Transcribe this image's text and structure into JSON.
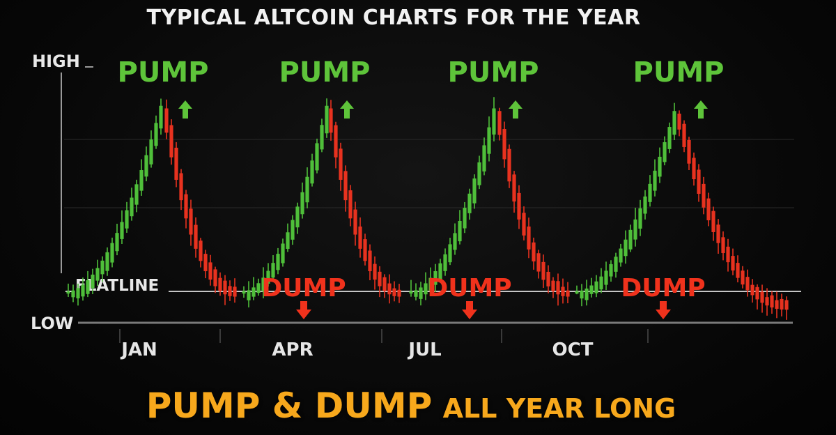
{
  "colors": {
    "background": "#050505",
    "bull": "#4fbf3a",
    "bear": "#e8321f",
    "pump_text": "#5ec43a",
    "dump_text": "#f0321c",
    "banner": "#f7a81c",
    "axis": "#9a9a9a",
    "flatline": "#e6e6e6"
  },
  "header": {
    "title": "TYPICAL ALTCOIN CHARTS FOR THE YEAR"
  },
  "axis": {
    "high_label": "HIGH",
    "flatline_label": "FLATLINE",
    "low_label": "LOW"
  },
  "footer": {
    "banner_part1": "PUMP & DUMP",
    "banner_part2": "ALL YEAR LONG"
  },
  "chart_data": {
    "type": "bar",
    "title": "TYPICAL ALTCOIN CHARTS FOR THE YEAR",
    "categories": [
      "JAN",
      "APR",
      "JUL",
      "OCT"
    ],
    "y_scale_labels": [
      "HIGH",
      "FLATLINE",
      "LOW"
    ],
    "ylim": [
      0,
      100
    ],
    "flatline_level": 12,
    "grid": true,
    "annotations": [
      {
        "text": "PUMP",
        "kind": "pump",
        "cycle": 1
      },
      {
        "text": "PUMP",
        "kind": "pump",
        "cycle": 2
      },
      {
        "text": "PUMP",
        "kind": "pump",
        "cycle": 3
      },
      {
        "text": "PUMP",
        "kind": "pump",
        "cycle": 4
      },
      {
        "text": "DUMP",
        "kind": "dump",
        "cycle": 1
      },
      {
        "text": "DUMP",
        "kind": "dump",
        "cycle": 2
      },
      {
        "text": "DUMP",
        "kind": "dump",
        "cycle": 3
      }
    ],
    "series": [
      {
        "cycle_peaks": [
          83,
          83,
          82,
          81
        ],
        "cycle_troughs": [
          10,
          10,
          10,
          5
        ],
        "shape": "repeating pump then dump"
      }
    ]
  }
}
